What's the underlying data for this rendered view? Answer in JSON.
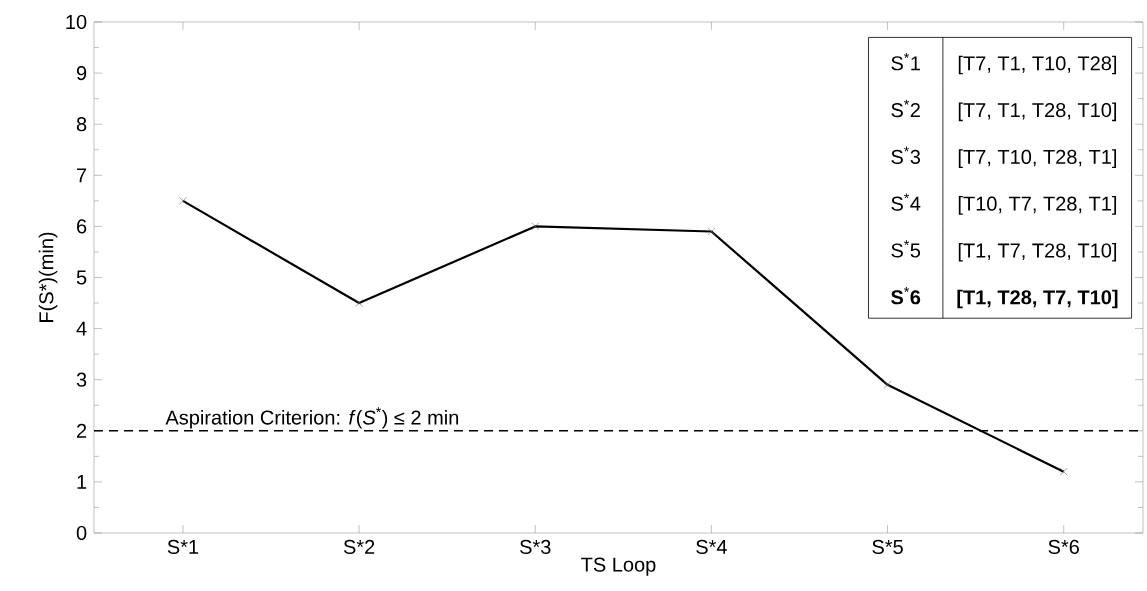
{
  "chart_data": {
    "type": "line",
    "xlabel": "TS Loop",
    "ylabel": "F(S*)(min)",
    "categories": [
      "S*1",
      "S*2",
      "S*3",
      "S*4",
      "S*5",
      "S*6"
    ],
    "series": [
      {
        "color": "#000000",
        "values": [
          6.5,
          4.5,
          6.0,
          5.9,
          2.9,
          1.2
        ]
      }
    ],
    "ylim": [
      0,
      10
    ],
    "yticks": [
      0,
      1,
      2,
      3,
      4,
      5,
      6,
      7,
      8,
      9,
      10
    ],
    "marker": "cross",
    "line_style": "solid",
    "ref_lines": [
      {
        "axis": "y",
        "value": 2,
        "label": "Aspiration Criterion: *f*(*S*$^{*}$) ≤ 2 min",
        "color": "#000000",
        "line_style": "dashed"
      }
    ],
    "annotations": [
      "S$^{*}$1",
      "[T7, T1, T10, T28]",
      "S$^{*}$2",
      "[T7, T1, T28, T10]",
      "S$^{*}$3",
      "[T7, T10, T28, T1]",
      "S$^{*}$4",
      "[T10, T7, T28, T1]",
      "S$^{*}$5",
      "[T1, T7, T28, T10]",
      "**S**$^{*}$**6**",
      "**[T1, T28, T7, T10]**"
    ]
  }
}
